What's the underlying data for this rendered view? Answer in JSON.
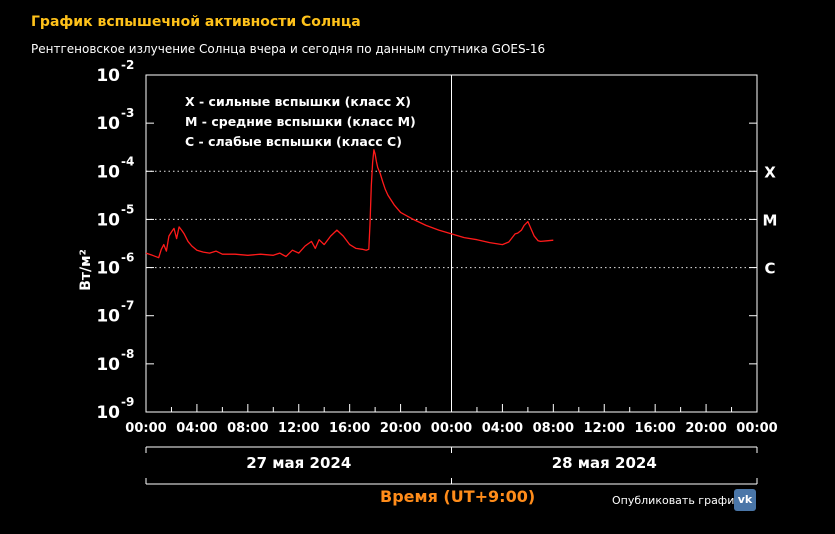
{
  "header": {
    "title": "График вспышечной активности Солнца",
    "subtitle": "Рентгеновское излучение Солнца вчера и сегодня по данным спутника GOES-16"
  },
  "chart_data": {
    "type": "line",
    "ylabel": "Вт/м²",
    "y_scale": "log",
    "ylim": [
      1e-09,
      0.01
    ],
    "y_ticks": [
      {
        "base": "10",
        "exp": "-2"
      },
      {
        "base": "10",
        "exp": "-3"
      },
      {
        "base": "10",
        "exp": "-4"
      },
      {
        "base": "10",
        "exp": "-5"
      },
      {
        "base": "10",
        "exp": "-6"
      },
      {
        "base": "10",
        "exp": "-7"
      },
      {
        "base": "10",
        "exp": "-8"
      },
      {
        "base": "10",
        "exp": "-9"
      }
    ],
    "xlim": [
      "2024-05-27 00:00",
      "2024-05-29 00:00"
    ],
    "x_ticks": [
      "00:00",
      "04:00",
      "08:00",
      "12:00",
      "16:00",
      "20:00",
      "00:00",
      "04:00",
      "08:00",
      "12:00",
      "16:00",
      "20:00",
      "00:00"
    ],
    "date_labels": [
      "27 мая 2024",
      "28 мая 2024"
    ],
    "xlabel": "Время (UT+9:00)",
    "legend": [
      "X - сильные вспышки (класс X)",
      "M - средние вспышки (класс M)",
      "C - слабые вспышки (класс C)"
    ],
    "class_lines": [
      {
        "label": "X",
        "value": 0.0001
      },
      {
        "label": "M",
        "value": 1e-05
      },
      {
        "label": "C",
        "value": 1e-06
      }
    ],
    "series": [
      {
        "color": "#ff1a1a",
        "x_hours": [
          0,
          0.5,
          1,
          1.2,
          1.4,
          1.6,
          1.8,
          2.0,
          2.2,
          2.4,
          2.6,
          2.8,
          3.0,
          3.3,
          3.6,
          4.0,
          4.5,
          5,
          5.5,
          6,
          7,
          8,
          9,
          10,
          10.5,
          11,
          11.5,
          12,
          12.5,
          13,
          13.3,
          13.6,
          14,
          14.5,
          15,
          15.5,
          16,
          16.5,
          17,
          17.3,
          17.5,
          17.6,
          17.7,
          17.8,
          17.9,
          18.0,
          18.1,
          18.2,
          18.4,
          18.6,
          18.8,
          19,
          19.5,
          20,
          21,
          22,
          23,
          24,
          25,
          26,
          27,
          28,
          28.5,
          29,
          29.2,
          29.5,
          29.7,
          30,
          30.5,
          30.8,
          31,
          31.5,
          32
        ],
        "values": [
          2e-06,
          1.8e-06,
          1.6e-06,
          2.4e-06,
          3e-06,
          2.2e-06,
          4.5e-06,
          5.5e-06,
          6.5e-06,
          4e-06,
          7e-06,
          6e-06,
          5e-06,
          3.5e-06,
          2.8e-06,
          2.3e-06,
          2.1e-06,
          2e-06,
          2.2e-06,
          1.9e-06,
          1.9e-06,
          1.8e-06,
          1.9e-06,
          1.8e-06,
          2e-06,
          1.7e-06,
          2.3e-06,
          2e-06,
          2.8e-06,
          3.5e-06,
          2.5e-06,
          3.8e-06,
          3e-06,
          4.5e-06,
          6e-06,
          4.5e-06,
          3e-06,
          2.5e-06,
          2.4e-06,
          2.3e-06,
          2.4e-06,
          8e-06,
          5e-05,
          0.00015,
          0.00028,
          0.00023,
          0.00016,
          0.00012,
          9e-05,
          6e-05,
          4.2e-05,
          3.2e-05,
          2e-05,
          1.4e-05,
          1e-05,
          7.5e-06,
          6e-06,
          5e-06,
          4.2e-06,
          3.8e-06,
          3.3e-06,
          3e-06,
          3.4e-06,
          5e-06,
          5.2e-06,
          6e-06,
          7.5e-06,
          9e-06,
          4.5e-06,
          3.6e-06,
          3.5e-06,
          3.6e-06,
          3.7e-06
        ]
      }
    ]
  },
  "footer": {
    "publish_label": "Опубликовать график:",
    "vk_label": "vk"
  }
}
